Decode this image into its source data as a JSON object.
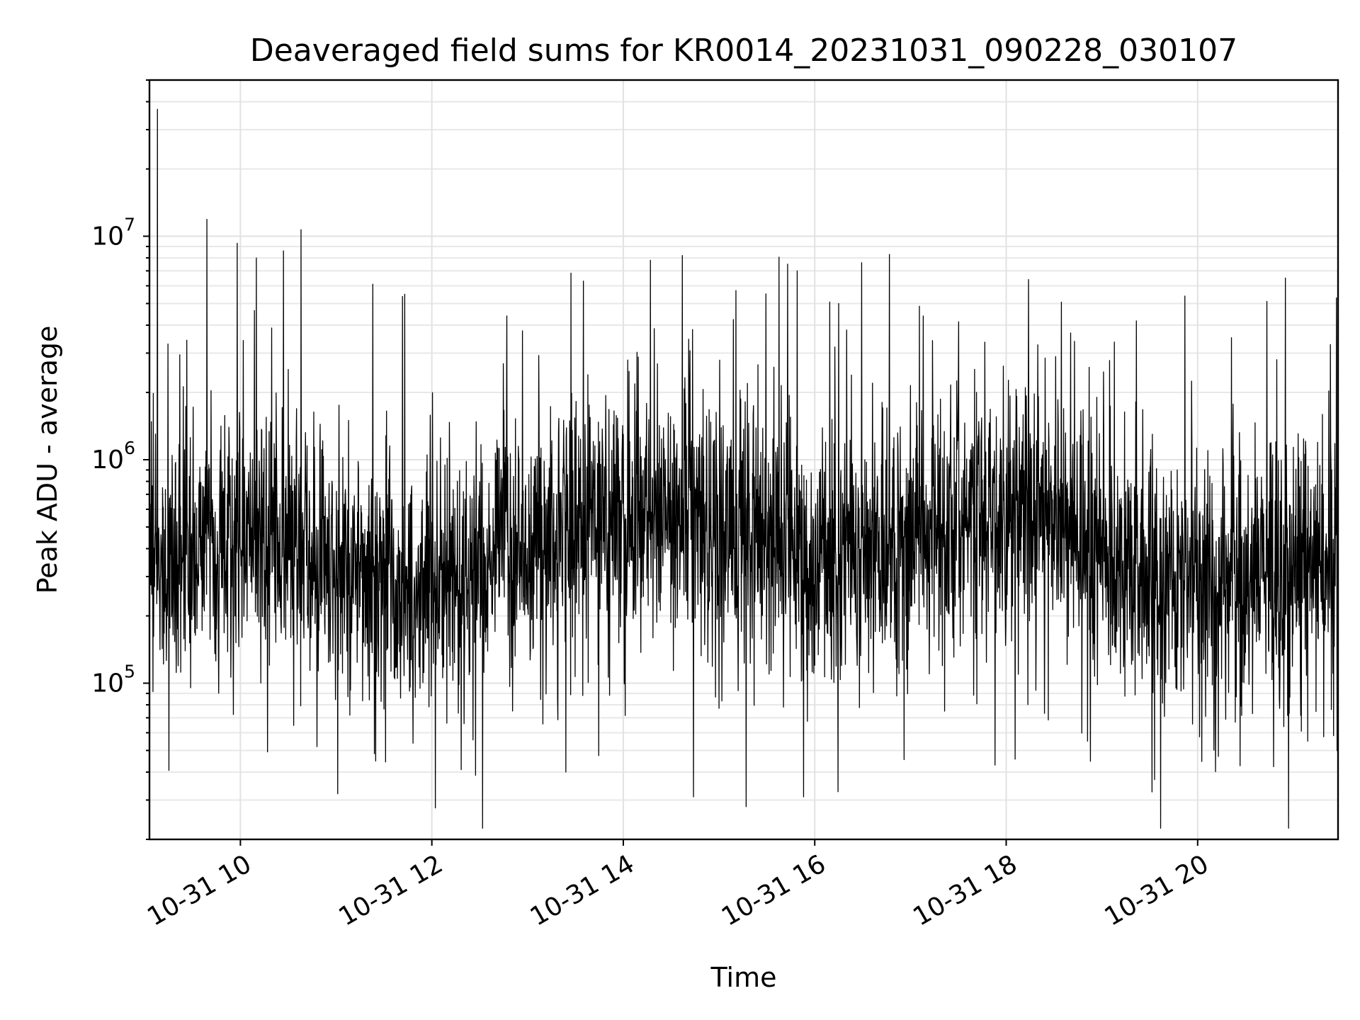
{
  "chart_data": {
    "type": "line",
    "title": "Deaveraged field sums for KR0014_20231031_090228_030107",
    "xlabel": "Time",
    "ylabel": "Peak ADU - average",
    "x_range": [
      "2023-10-31T09:03",
      "2023-10-31T21:28"
    ],
    "ylim": [
      20000,
      50000000
    ],
    "y_scale": "log",
    "grid": true,
    "legend": "none",
    "x_ticks": [
      {
        "value": "2023-10-31T10:00",
        "label": "10-31 10"
      },
      {
        "value": "2023-10-31T12:00",
        "label": "10-31 12"
      },
      {
        "value": "2023-10-31T14:00",
        "label": "10-31 14"
      },
      {
        "value": "2023-10-31T16:00",
        "label": "10-31 16"
      },
      {
        "value": "2023-10-31T18:00",
        "label": "10-31 18"
      },
      {
        "value": "2023-10-31T20:00",
        "label": "10-31 20"
      }
    ],
    "y_ticks": [
      {
        "value": 100000,
        "base": "10",
        "exp": "5"
      },
      {
        "value": 1000000,
        "base": "10",
        "exp": "6"
      },
      {
        "value": 10000000,
        "base": "10",
        "exp": "7"
      }
    ],
    "series": [
      {
        "color": "#000000",
        "points": [
          [
            "2023-10-31T09:08",
            37000000
          ],
          [
            "2023-10-31T09:39",
            11900000
          ],
          [
            "2023-10-31T09:58",
            9300000
          ],
          [
            "2023-10-31T10:10",
            8000000
          ],
          [
            "2023-10-31T10:27",
            8600000
          ],
          [
            "2023-10-31T10:38",
            10700000
          ],
          [
            "2023-10-31T10:48",
            52000
          ],
          [
            "2023-10-31T11:01",
            32000
          ],
          [
            "2023-10-31T11:23",
            6100000
          ],
          [
            "2023-10-31T11:43",
            5500000
          ],
          [
            "2023-10-31T12:47",
            4400000
          ],
          [
            "2023-10-31T13:24",
            40000
          ],
          [
            "2023-10-31T13:35",
            6300000
          ],
          [
            "2023-10-31T14:37",
            8200000
          ],
          [
            "2023-10-31T14:44",
            31000
          ],
          [
            "2023-10-31T15:17",
            28000
          ],
          [
            "2023-10-31T15:43",
            7500000
          ],
          [
            "2023-10-31T15:49",
            7000000
          ],
          [
            "2023-10-31T15:53",
            31000
          ],
          [
            "2023-10-31T16:15",
            5000000
          ],
          [
            "2023-10-31T17:08",
            4400000
          ],
          [
            "2023-10-31T17:53",
            43000
          ],
          [
            "2023-10-31T18:14",
            6400000
          ],
          [
            "2023-10-31T18:51",
            55000
          ],
          [
            "2023-10-31T19:52",
            5400000
          ],
          [
            "2023-10-31T20:13",
            47000
          ],
          [
            "2023-10-31T20:55",
            6500000
          ],
          [
            "2023-10-31T21:09",
            55000
          ],
          [
            "2023-10-31T21:28",
            3400000
          ]
        ],
        "baseline_median": 400000,
        "resolution_seconds": 12
      }
    ]
  }
}
